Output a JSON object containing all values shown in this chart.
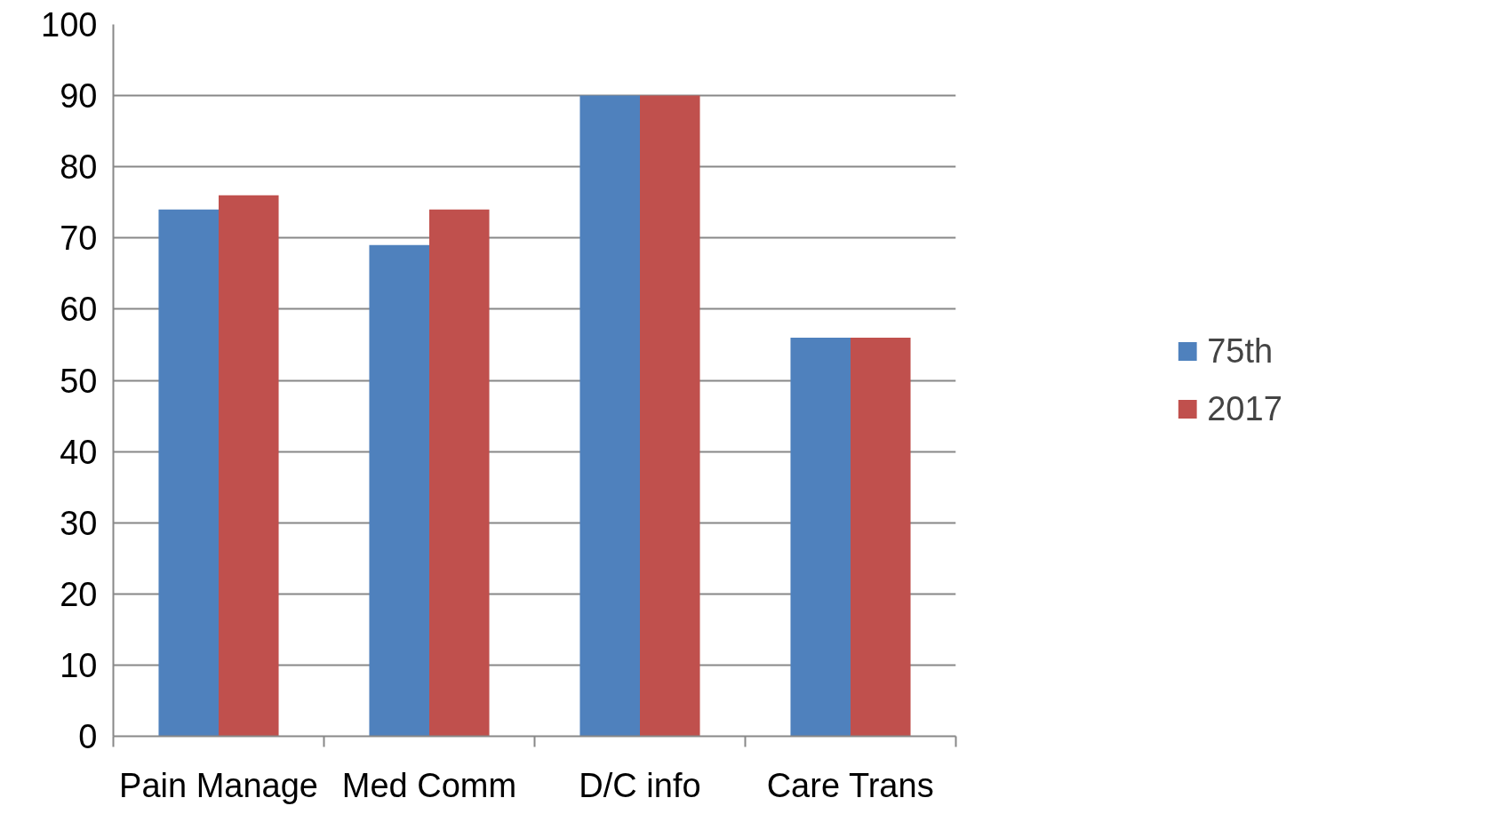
{
  "chart_data": {
    "type": "bar",
    "categories": [
      "Pain Manage",
      "Med Comm",
      "D/C info",
      "Care Trans"
    ],
    "series": [
      {
        "name": "75th",
        "color": "#4f81bd",
        "values": [
          74,
          69,
          90,
          56
        ]
      },
      {
        "name": "2017",
        "color": "#c0504d",
        "values": [
          76,
          74,
          90,
          56
        ]
      }
    ],
    "ylim": [
      0,
      100
    ],
    "yticks": [
      0,
      10,
      20,
      30,
      40,
      50,
      60,
      70,
      80,
      90,
      100
    ],
    "grid": "y",
    "legend": "right"
  }
}
